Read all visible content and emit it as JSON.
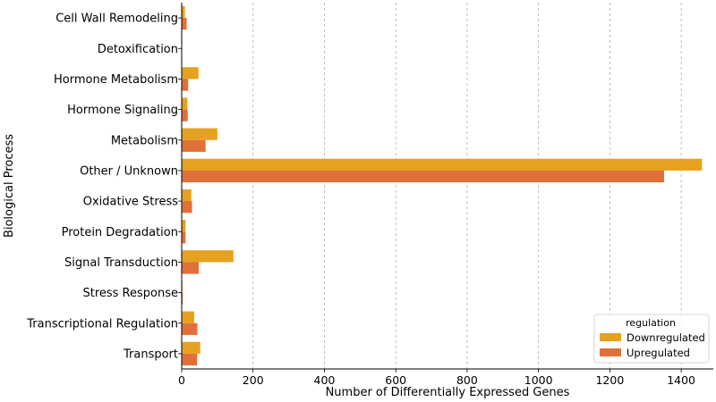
{
  "chart_data": {
    "type": "bar",
    "orientation": "horizontal",
    "title": "",
    "xlabel": "Number of Differentially Expressed Genes",
    "ylabel": "Biological Process",
    "xlim": [
      0,
      1490
    ],
    "xticks": [
      0,
      200,
      400,
      600,
      800,
      1000,
      1200,
      1400
    ],
    "grid": "x-dashed",
    "categories": [
      "Cell Wall Remodeling",
      "Detoxification",
      "Hormone Metabolism",
      "Hormone Signaling",
      "Metabolism",
      "Other / Unknown",
      "Oxidative Stress",
      "Protein Degradation",
      "Signal Transduction",
      "Stress Response",
      "Transcriptional Regulation",
      "Transport"
    ],
    "series": [
      {
        "name": "Downregulated",
        "color": "#E5A11F",
        "values": [
          9,
          1,
          47,
          16,
          100,
          1458,
          27,
          11,
          145,
          2,
          35,
          52
        ]
      },
      {
        "name": "Upregulated",
        "color": "#E0703A",
        "values": [
          14,
          0,
          18,
          17,
          67,
          1352,
          29,
          11,
          48,
          3,
          44,
          43
        ]
      }
    ],
    "legend": {
      "title": "regulation",
      "position": "bottom-right"
    }
  }
}
